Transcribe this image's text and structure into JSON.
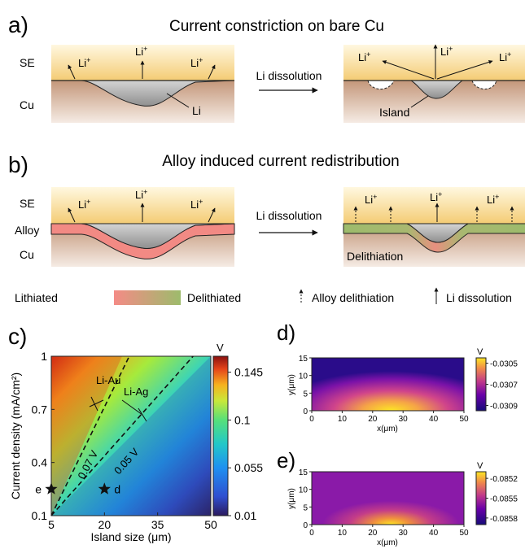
{
  "panel_a": {
    "letter": "a)",
    "title": "Current constriction on bare Cu",
    "se_label": "SE",
    "cu_label": "Cu",
    "ion": "Li",
    "ion_sup": "+",
    "process": "Li dissolution",
    "li_label": "Li",
    "island_label": "Island"
  },
  "panel_b": {
    "letter": "b)",
    "title": "Alloy induced current redistribution",
    "se_label": "SE",
    "alloy_label": "Alloy",
    "cu_label": "Cu",
    "ion": "Li",
    "ion_sup": "+",
    "process": "Li dissolution",
    "delithiation_label": "Delithiation"
  },
  "legend": {
    "lithiated": "Lithiated",
    "delithiated": "Delithiated",
    "alloy_delithiation": "Alloy delithiation",
    "li_dissolution": "Li dissolution",
    "lithiated_color": "#f48b86",
    "delithiated_color": "#9dbb6c"
  },
  "colors": {
    "se_top": "#fff7dc",
    "se_bottom": "#f5cf7a",
    "cu_top": "#c79a7a",
    "cu_bottom": "#f4e8e0",
    "li_gray": "#a9a9a9",
    "alloy_pink": "#f28a84"
  },
  "chart_data": [
    {
      "id": "c",
      "letter": "c)",
      "type": "heatmap",
      "xlabel": "Island size (μm)",
      "ylabel": "Current density (mA/cm²)",
      "x_ticks": [
        "5",
        "20",
        "35",
        "50"
      ],
      "y_ticks": [
        "0.1",
        "0.4",
        "0.7",
        "1"
      ],
      "xlim": [
        5,
        50
      ],
      "ylim": [
        0.1,
        1
      ],
      "colorbar_unit": "V",
      "colorbar_ticks": [
        "0.145",
        "0.1",
        "0.055",
        "0.01"
      ],
      "colorbar_range": [
        0.01,
        0.16
      ],
      "contours": [
        {
          "label": "0.07 V",
          "points": [
            [
              5,
              0.1
            ],
            [
              27,
              1.0
            ]
          ]
        },
        {
          "label": "0.05 V",
          "points": [
            [
              5,
              0.1
            ],
            [
              45,
              1.0
            ]
          ]
        }
      ],
      "annotations": [
        {
          "label": "Li-Au"
        },
        {
          "label": "Li-Ag"
        }
      ],
      "markers": [
        {
          "label": "e",
          "x": 5,
          "y": 0.25
        },
        {
          "label": "d",
          "x": 20,
          "y": 0.25
        }
      ]
    },
    {
      "id": "d",
      "letter": "d)",
      "type": "heatmap",
      "xlabel": "x(μm)",
      "ylabel": "y(μm)",
      "x_ticks": [
        "0",
        "10",
        "20",
        "30",
        "40",
        "50"
      ],
      "y_ticks": [
        "0",
        "5",
        "10",
        "15"
      ],
      "xlim": [
        0,
        50
      ],
      "ylim": [
        0,
        15
      ],
      "colorbar_unit": "V",
      "colorbar_ticks": [
        "-0.0305",
        "-0.0307",
        "-0.0309"
      ],
      "colorbar_range": [
        -0.03095,
        -0.03045
      ]
    },
    {
      "id": "e",
      "letter": "e)",
      "type": "heatmap",
      "xlabel": "x(μm)",
      "ylabel": "y(μm)",
      "x_ticks": [
        "0",
        "10",
        "20",
        "30",
        "40",
        "50"
      ],
      "y_ticks": [
        "0",
        "5",
        "10",
        "15"
      ],
      "xlim": [
        0,
        50
      ],
      "ylim": [
        0,
        15
      ],
      "colorbar_unit": "V",
      "colorbar_ticks": [
        "-0.0852",
        "-0.0855",
        "-0.0858"
      ],
      "colorbar_range": [
        -0.0859,
        -0.0851
      ]
    }
  ]
}
